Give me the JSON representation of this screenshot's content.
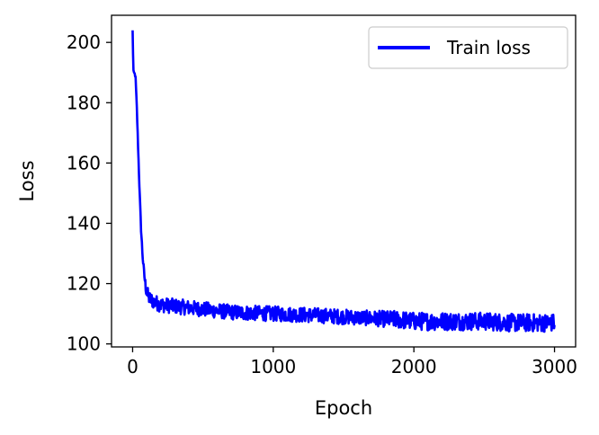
{
  "chart_data": {
    "type": "line",
    "xlabel": "Epoch",
    "ylabel": "Loss",
    "xlim": [
      -150,
      3150
    ],
    "ylim": [
      99,
      209
    ],
    "xticks": [
      0,
      1000,
      2000,
      3000
    ],
    "yticks": [
      100,
      120,
      140,
      160,
      180,
      200
    ],
    "grid": false,
    "legend": {
      "placement": "top-right"
    },
    "series": [
      {
        "name": "Train loss",
        "color": "#0000ff",
        "x": [
          0,
          5,
          10,
          20,
          30,
          40,
          50,
          60,
          70,
          80,
          90,
          100,
          120,
          150,
          200,
          300,
          400,
          500,
          700,
          1000,
          1300,
          1500,
          1700,
          1900,
          2000,
          2200,
          2500,
          2700,
          3000
        ],
        "y": [
          204,
          191,
          190,
          189,
          178,
          164,
          150,
          138,
          130,
          124,
          120,
          117,
          115,
          114,
          113,
          112.5,
          112,
          111.5,
          110.5,
          110,
          109.5,
          109,
          108.5,
          108,
          107.5,
          107.5,
          107.5,
          107,
          107
        ],
        "spread": [
          0,
          0,
          0,
          1,
          1,
          1,
          1,
          1,
          1.5,
          1.5,
          2,
          2.5,
          2.5,
          2.5,
          2.5,
          2.5,
          2.5,
          2.5,
          2.5,
          2.5,
          2.5,
          2.5,
          2.5,
          3,
          3,
          3,
          3,
          3,
          3
        ]
      }
    ]
  }
}
